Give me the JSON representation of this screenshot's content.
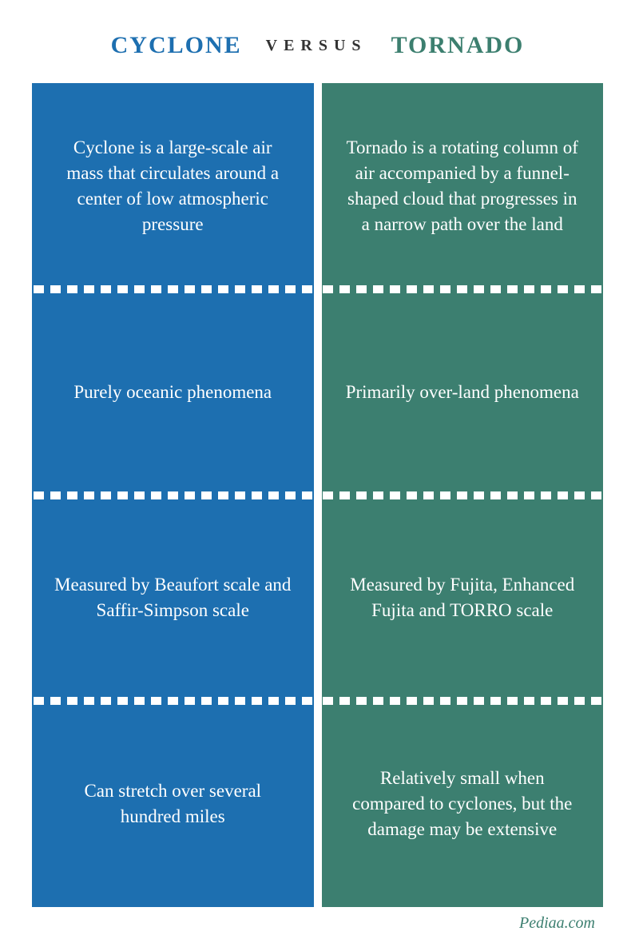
{
  "header": {
    "left": "CYCLONE",
    "center": "VERSUS",
    "right": "TORNADO"
  },
  "columns": {
    "left": {
      "color": "#1d6fb0",
      "cells": [
        "Cyclone is a large-scale air mass that circulates around a center of low atmospheric pressure",
        "Purely oceanic phenomena",
        "Measured by Beaufort scale and Saffir-Simpson scale",
        "Can stretch over several hundred miles"
      ]
    },
    "right": {
      "color": "#3c7f70",
      "cells": [
        "Tornado is a rotating column of air accompanied by a funnel-shaped cloud that progresses in a narrow path over the land",
        "Primarily over-land phenomena",
        "Measured by Fujita, Enhanced Fujita and TORRO scale",
        "Relatively small when compared to cyclones, but the damage may be extensive"
      ]
    }
  },
  "footer": "Pediaa.com",
  "styling": {
    "divider_square_color": "#ffffff",
    "divider_square_count": 17,
    "body_font_size": 23,
    "header_title_font_size": 30,
    "header_center_font_size": 20,
    "background_color": "#ffffff",
    "text_color": "#ffffff"
  }
}
